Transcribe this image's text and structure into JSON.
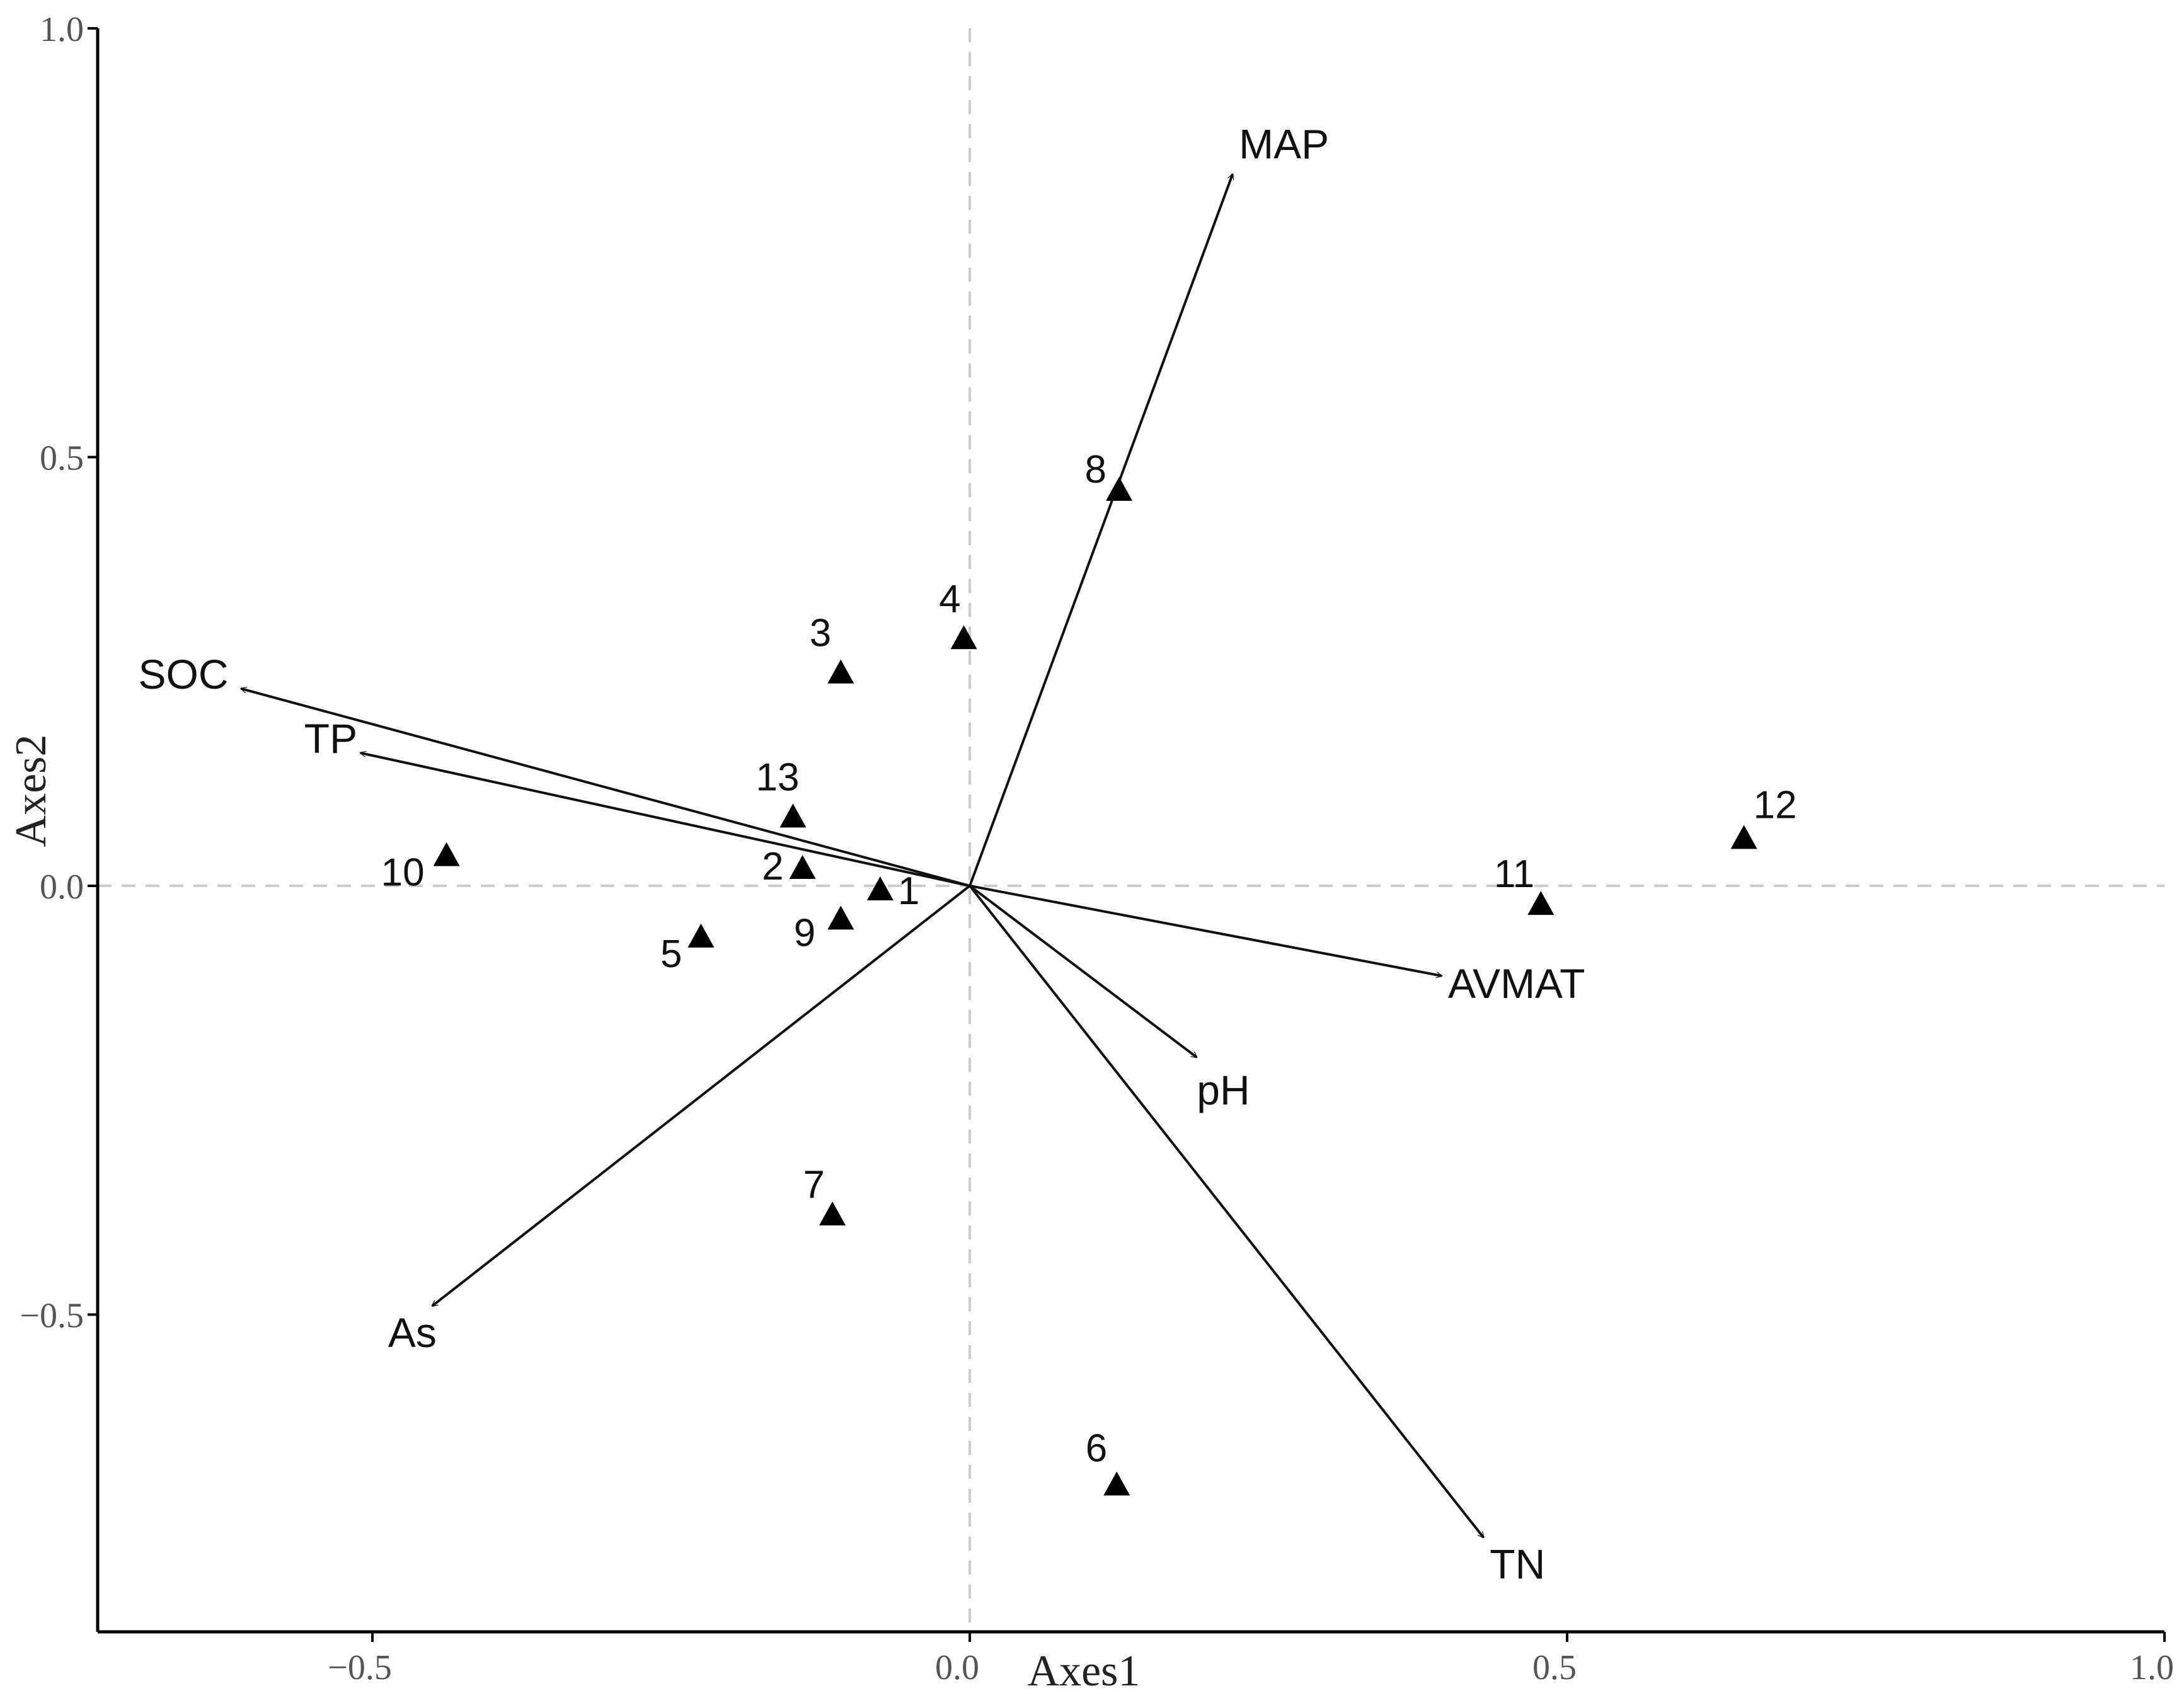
{
  "chart_data": {
    "type": "scatter",
    "title": "",
    "xlabel": "Axes1",
    "ylabel": "Axes2",
    "xlim": [
      -0.73,
      1.0
    ],
    "ylim": [
      -0.87,
      1.0
    ],
    "xticks": [
      -0.5,
      0.0,
      0.5,
      1.0
    ],
    "xtick_labels": [
      "−0.5",
      "0.0",
      "0.5",
      "1.0"
    ],
    "yticks": [
      -0.5,
      0.0,
      0.5,
      1.0
    ],
    "ytick_labels": [
      "−0.5",
      "0.0",
      "0.5",
      "1.0"
    ],
    "reference_lines": {
      "x": 0,
      "y": 0,
      "style": "dashed",
      "color": "#cccccc"
    },
    "grid": false,
    "marker": "filled-triangle",
    "marker_color": "#000000",
    "points": [
      {
        "label": "1",
        "x": -0.075,
        "y": -0.003
      },
      {
        "label": "2",
        "x": -0.14,
        "y": 0.022
      },
      {
        "label": "3",
        "x": -0.108,
        "y": 0.25
      },
      {
        "label": "4",
        "x": -0.005,
        "y": 0.29
      },
      {
        "label": "5",
        "x": -0.225,
        "y": -0.058
      },
      {
        "label": "6",
        "x": 0.123,
        "y": -0.697
      },
      {
        "label": "7",
        "x": -0.115,
        "y": -0.382
      },
      {
        "label": "8",
        "x": 0.125,
        "y": 0.463
      },
      {
        "label": "9",
        "x": -0.108,
        "y": -0.037
      },
      {
        "label": "10",
        "x": -0.438,
        "y": 0.037
      },
      {
        "label": "11",
        "x": 0.478,
        "y": -0.02
      },
      {
        "label": "12",
        "x": 0.648,
        "y": 0.057
      },
      {
        "label": "13",
        "x": -0.148,
        "y": 0.082
      }
    ],
    "vectors": [
      {
        "label": "MAP",
        "x": 0.22,
        "y": 0.83
      },
      {
        "label": "SOC",
        "x": -0.61,
        "y": 0.23
      },
      {
        "label": "TP",
        "x": -0.51,
        "y": 0.155
      },
      {
        "label": "AVMAT",
        "x": 0.395,
        "y": -0.105
      },
      {
        "label": "pH",
        "x": 0.19,
        "y": -0.2
      },
      {
        "label": "TN",
        "x": 0.43,
        "y": -0.76
      },
      {
        "label": "As",
        "x": -0.45,
        "y": -0.49
      }
    ]
  }
}
